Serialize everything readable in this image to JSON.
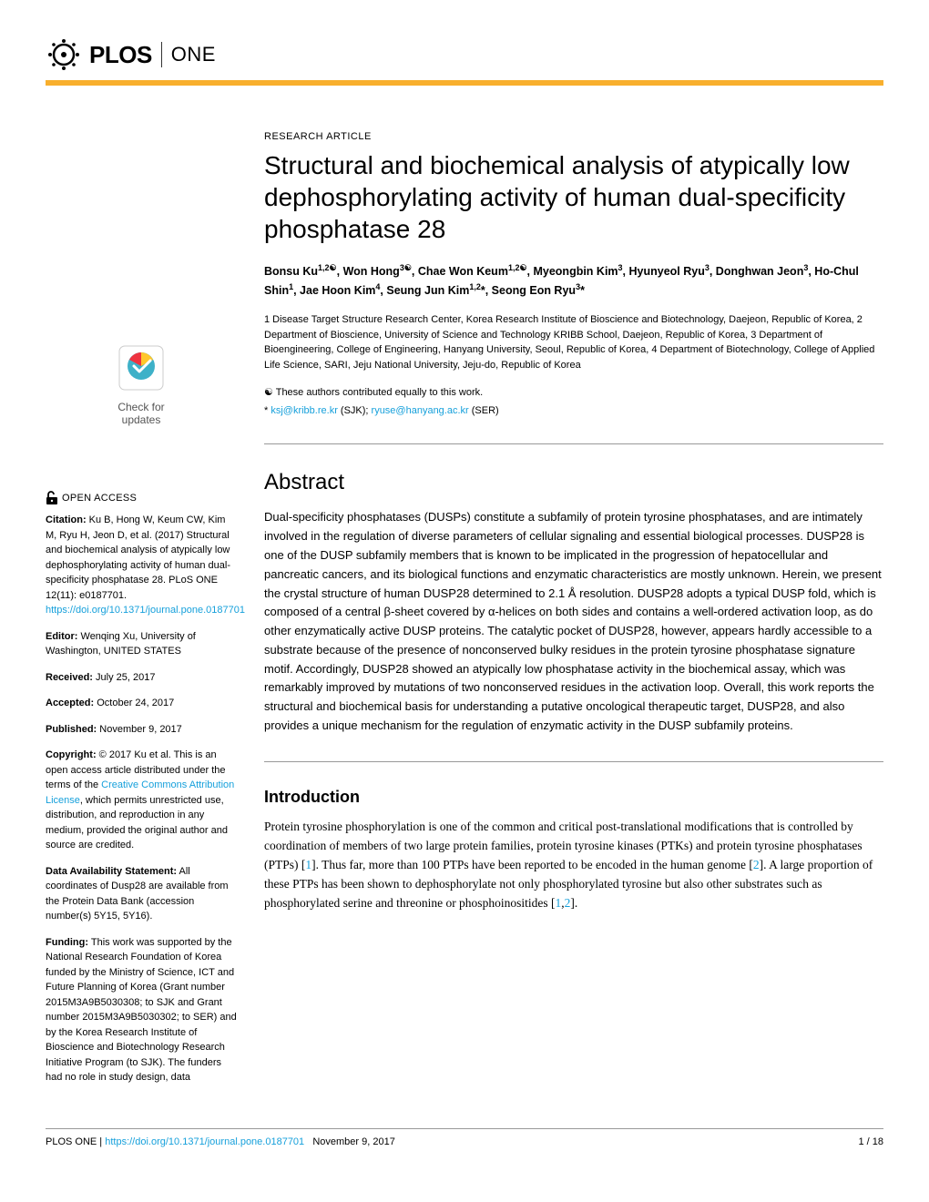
{
  "journal": {
    "plos": "PLOS",
    "one": "ONE"
  },
  "article_type": "RESEARCH ARTICLE",
  "title": "Structural and biochemical analysis of atypically low dephosphorylating activity of human dual-specificity phosphatase 28",
  "authors_html": "Bonsu Ku<sup>1,2☯</sup>, Won Hong<sup>3☯</sup>, Chae Won Keum<sup>1,2☯</sup>, Myeongbin Kim<sup>3</sup>, Hyunyeol Ryu<sup>3</sup>, Donghwan Jeon<sup>3</sup>, Ho-Chul Shin<sup>1</sup>, Jae Hoon Kim<sup>4</sup>, Seung Jun Kim<sup>1,2</sup>*, Seong Eon Ryu<sup>3</sup>*",
  "affiliations": "1 Disease Target Structure Research Center, Korea Research Institute of Bioscience and Biotechnology, Daejeon, Republic of Korea, 2 Department of Bioscience, University of Science and Technology KRIBB School, Daejeon, Republic of Korea, 3 Department of Bioengineering, College of Engineering, Hanyang University, Seoul, Republic of Korea, 4 Department of Biotechnology, College of Applied Life Science, SARI, Jeju National University, Jeju-do, Republic of Korea",
  "contrib_note": "☯ These authors contributed equally to this work.",
  "corresp_prefix": "* ",
  "email1": "ksj@kribb.re.kr",
  "email1_suffix": " (SJK); ",
  "email2": "ryuse@hanyang.ac.kr",
  "email2_suffix": " (SER)",
  "abstract_heading": "Abstract",
  "abstract": "Dual-specificity phosphatases (DUSPs) constitute a subfamily of protein tyrosine phosphatases, and are intimately involved in the regulation of diverse parameters of cellular signaling and essential biological processes. DUSP28 is one of the DUSP subfamily members that is known to be implicated in the progression of hepatocellular and pancreatic cancers, and its biological functions and enzymatic characteristics are mostly unknown. Herein, we present the crystal structure of human DUSP28 determined to 2.1 Å resolution. DUSP28 adopts a typical DUSP fold, which is composed of a central β-sheet covered by α-helices on both sides and contains a well-ordered activation loop, as do other enzymatically active DUSP proteins. The catalytic pocket of DUSP28, however, appears hardly accessible to a substrate because of the presence of nonconserved bulky residues in the protein tyrosine phosphatase signature motif. Accordingly, DUSP28 showed an atypically low phosphatase activity in the biochemical assay, which was remarkably improved by mutations of two nonconserved residues in the activation loop. Overall, this work reports the structural and biochemical basis for understanding a putative oncological therapeutic target, DUSP28, and also provides a unique mechanism for the regulation of enzymatic activity in the DUSP subfamily proteins.",
  "intro_heading": "Introduction",
  "intro_part1": "Protein tyrosine phosphorylation is one of the common and critical post-translational modifications that is controlled by coordination of members of two large protein families, protein tyrosine kinases (PTKs) and protein tyrosine phosphatases (PTPs) [",
  "intro_ref1": "1",
  "intro_part2": "]. Thus far, more than 100 PTPs have been reported to be encoded in the human genome [",
  "intro_ref2": "2",
  "intro_part3": "]. A large proportion of these PTPs has been shown to dephosphorylate not only phosphorylated tyrosine but also other substrates such as phosphorylated serine and threonine or phosphoinositides [",
  "intro_ref3": "1",
  "intro_part4": ",",
  "intro_ref4": "2",
  "intro_part5": "].",
  "sidebar": {
    "check_updates": "Check for\nupdates",
    "open_access": "OPEN ACCESS",
    "citation_label": "Citation:",
    "citation_text": " Ku B, Hong W, Keum CW, Kim M, Ryu H, Jeon D, et al. (2017) Structural and biochemical analysis of atypically low dephosphorylating activity of human dual-specificity phosphatase 28. PLoS ONE 12(11): e0187701. ",
    "citation_link": "https://doi.org/10.1371/journal.pone.0187701",
    "editor_label": "Editor:",
    "editor_text": " Wenqing Xu, University of Washington, UNITED STATES",
    "received_label": "Received:",
    "received_text": " July 25, 2017",
    "accepted_label": "Accepted:",
    "accepted_text": " October 24, 2017",
    "published_label": "Published:",
    "published_text": " November 9, 2017",
    "copyright_label": "Copyright:",
    "copyright_text1": " © 2017 Ku et al. This is an open access article distributed under the terms of the ",
    "copyright_link": "Creative Commons Attribution License",
    "copyright_text2": ", which permits unrestricted use, distribution, and reproduction in any medium, provided the original author and source are credited.",
    "data_label": "Data Availability Statement:",
    "data_text": " All coordinates of Dusp28 are available from the Protein Data Bank (accession number(s) 5Y15, 5Y16).",
    "funding_label": "Funding:",
    "funding_text": " This work was supported by the National Research Foundation of Korea funded by the Ministry of Science, ICT and Future Planning of Korea (Grant number 2015M3A9B5030308; to SJK and Grant number 2015M3A9B5030302; to SER) and by the Korea Research Institute of Bioscience and Biotechnology Research Initiative Program (to SJK). The funders had no role in study design, data"
  },
  "footer": {
    "journal": "PLOS ONE | ",
    "doi": "https://doi.org/10.1371/journal.pone.0187701",
    "date": "   November 9, 2017",
    "page": "1 / 18"
  },
  "colors": {
    "accent": "#f8af2d",
    "link": "#16a0db",
    "crossmark_blue": "#3eb1c8",
    "crossmark_yellow": "#ffc72c",
    "crossmark_red": "#ef3340"
  }
}
